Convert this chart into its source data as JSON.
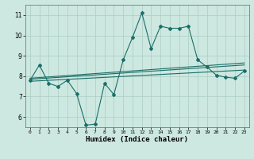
{
  "xlabel": "Humidex (Indice chaleur)",
  "ylabel": "",
  "bg_color": "#cde8e0",
  "grid_color": "#aaccc4",
  "line_color": "#1a6e68",
  "xlim": [
    -0.5,
    23.5
  ],
  "ylim": [
    5.5,
    11.5
  ],
  "xticks": [
    0,
    1,
    2,
    3,
    4,
    5,
    6,
    7,
    8,
    9,
    10,
    11,
    12,
    13,
    14,
    15,
    16,
    17,
    18,
    19,
    20,
    21,
    22,
    23
  ],
  "yticks": [
    6,
    7,
    8,
    9,
    10,
    11
  ],
  "line1_x": [
    0,
    1,
    2,
    3,
    4,
    5,
    6,
    7,
    8,
    9,
    10,
    11,
    12,
    13,
    14,
    15,
    16,
    17,
    18,
    19,
    20,
    21,
    22,
    23
  ],
  "line1_y": [
    7.8,
    8.55,
    7.65,
    7.5,
    7.8,
    7.15,
    5.6,
    5.65,
    7.65,
    7.1,
    8.8,
    9.9,
    11.1,
    9.35,
    10.45,
    10.35,
    10.35,
    10.45,
    8.8,
    8.45,
    8.05,
    7.95,
    7.9,
    8.25
  ],
  "line2_x": [
    0,
    23
  ],
  "line2_y": [
    7.75,
    8.3
  ],
  "line3_x": [
    0,
    23
  ],
  "line3_y": [
    7.85,
    8.55
  ],
  "line4_x": [
    0,
    23
  ],
  "line4_y": [
    7.9,
    8.65
  ]
}
